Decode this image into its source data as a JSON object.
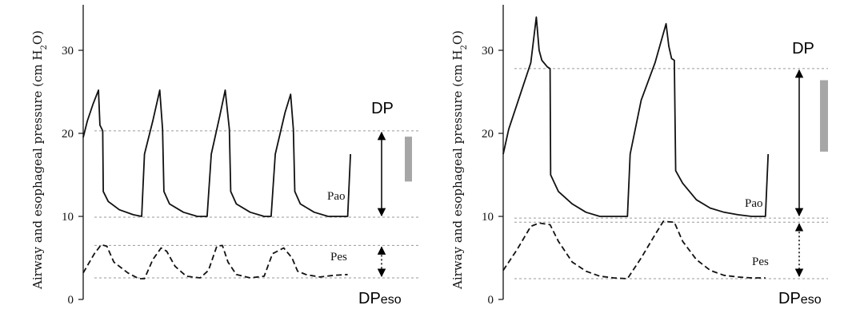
{
  "chart_data": [
    {
      "type": "line",
      "ylabel": "Airway and esophageal pressure (cm H2O)",
      "ylabel_base": "Airway and esophageal pressure (cm H",
      "ylabel_sub": "2",
      "ylabel_end": "O)",
      "yticks": [
        "0",
        "10",
        "20",
        "30"
      ],
      "ylim": [
        0,
        35
      ],
      "xlim": [
        0,
        10
      ],
      "series": [
        {
          "name": "Pao",
          "style": "solid",
          "x": [
            0,
            0.15,
            0.35,
            0.55,
            0.6,
            0.7,
            0.72,
            0.9,
            1.3,
            1.8,
            2.1,
            2.2,
            2.5,
            2.75,
            2.85,
            2.9,
            3.1,
            3.6,
            4.1,
            4.45,
            4.6,
            4.9,
            5.1,
            5.25,
            5.3,
            5.5,
            6.0,
            6.5,
            6.75,
            6.9,
            7.25,
            7.45,
            7.55,
            7.6,
            7.8,
            8.3,
            8.8,
            9.2,
            9.5,
            9.6
          ],
          "y": [
            19.5,
            21.5,
            23.5,
            25.2,
            21,
            20.3,
            13,
            11.8,
            10.8,
            10.2,
            10,
            17.5,
            21.5,
            25.2,
            20.5,
            13,
            11.5,
            10.5,
            10,
            10,
            17.5,
            22,
            25.2,
            20.5,
            13,
            11.5,
            10.5,
            10,
            10,
            17.5,
            22.5,
            24.7,
            20.5,
            13,
            11.5,
            10.5,
            10,
            10,
            10,
            17.5
          ]
        },
        {
          "name": "Pes",
          "style": "dashed",
          "x": [
            0,
            0.4,
            0.65,
            0.85,
            1.1,
            1.6,
            2.0,
            2.2,
            2.5,
            2.8,
            3.0,
            3.3,
            3.7,
            4.2,
            4.5,
            4.8,
            5.0,
            5.2,
            5.5,
            6.0,
            6.5,
            6.8,
            7.2,
            7.5,
            7.7,
            8.0,
            8.5,
            9.0,
            9.5
          ],
          "y": [
            3.2,
            5.5,
            6.6,
            6.4,
            4.5,
            3.2,
            2.5,
            2.5,
            4.8,
            6.2,
            5.8,
            4.0,
            2.8,
            2.6,
            3.5,
            6.4,
            6.5,
            4.5,
            3.0,
            2.6,
            2.8,
            5.5,
            6.2,
            5.0,
            3.4,
            3.0,
            2.7,
            2.9,
            3.0
          ]
        }
      ],
      "reference_lines": [
        20.3,
        9.9,
        6.5,
        2.6
      ],
      "annotations": [
        "DP",
        "DPeso"
      ],
      "dp_arrow": [
        20.3,
        9.9
      ],
      "dpeso_arrow": [
        6.5,
        2.6
      ],
      "bar": [
        19.6,
        14.2
      ]
    },
    {
      "type": "line",
      "ylabel": "Airway and esophageal pressure (cm H2O)",
      "ylabel_base": "Airway and esophageal pressure (cm H",
      "ylabel_sub": "2",
      "ylabel_end": "O)",
      "yticks": [
        "0",
        "10",
        "20",
        "30"
      ],
      "ylim": [
        0,
        35
      ],
      "xlim": [
        0,
        10
      ],
      "series": [
        {
          "name": "Pao",
          "style": "solid",
          "x": [
            0,
            0.2,
            0.6,
            1.0,
            1.2,
            1.3,
            1.4,
            1.6,
            1.7,
            1.72,
            2.0,
            2.5,
            3.0,
            3.5,
            4.0,
            4.5,
            4.6,
            5.0,
            5.5,
            5.9,
            6.0,
            6.1,
            6.2,
            6.25,
            6.5,
            7.0,
            7.5,
            8.0,
            8.5,
            9.0,
            9.5,
            9.6
          ],
          "y": [
            17.5,
            20.5,
            24.5,
            28.5,
            34.0,
            30.0,
            28.8,
            28.0,
            27.8,
            15.0,
            13.0,
            11.5,
            10.5,
            10.0,
            10.0,
            10.0,
            17.5,
            24.0,
            28.5,
            33.2,
            30.5,
            29.0,
            28.8,
            15.5,
            14.0,
            12.0,
            11.0,
            10.5,
            10.2,
            10.0,
            10.0,
            17.5
          ]
        },
        {
          "name": "Pes",
          "style": "dashed",
          "x": [
            0,
            0.5,
            1.0,
            1.3,
            1.7,
            2.0,
            2.5,
            3.0,
            3.5,
            4.0,
            4.5,
            5.0,
            5.5,
            5.8,
            6.2,
            6.5,
            7.0,
            7.5,
            8.0,
            8.5,
            9.0,
            9.5
          ],
          "y": [
            3.5,
            6.0,
            8.8,
            9.2,
            9.0,
            7.0,
            4.5,
            3.4,
            2.8,
            2.6,
            2.5,
            5.0,
            7.8,
            9.4,
            9.3,
            7.0,
            4.8,
            3.5,
            2.9,
            2.7,
            2.6,
            2.6
          ]
        }
      ],
      "reference_lines": [
        27.8,
        9.8,
        9.3,
        2.5
      ],
      "annotations": [
        "DP",
        "DPeso"
      ],
      "dp_arrow": [
        27.8,
        9.9
      ],
      "dpeso_arrow": [
        9.3,
        2.6
      ],
      "bar": [
        26.4,
        17.8
      ]
    }
  ]
}
